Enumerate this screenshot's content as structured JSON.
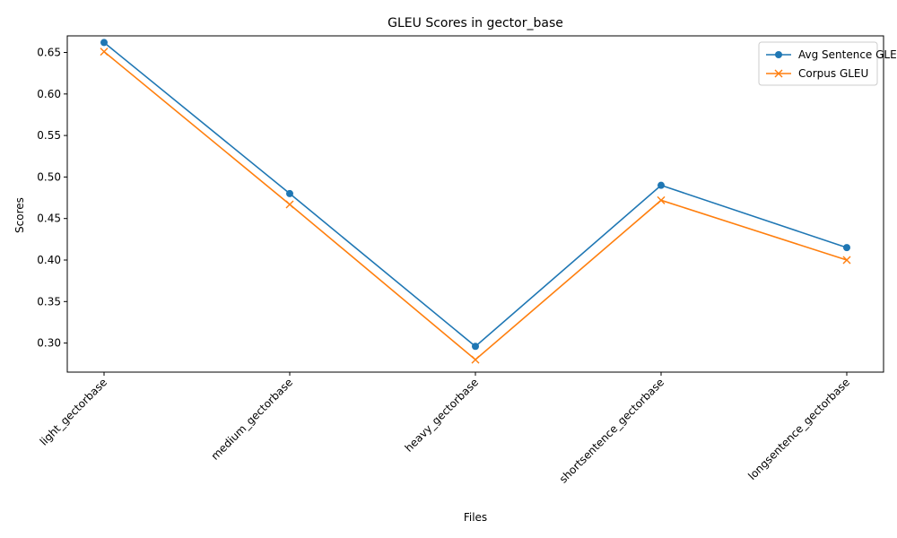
{
  "chart_data": {
    "type": "line",
    "title": "GLEU Scores in gector_base",
    "xlabel": "Files",
    "ylabel": "Scores",
    "categories": [
      "light_gectorbase",
      "medium_gectorbase",
      "heavy_gectorbase",
      "shortsentence_gectorbase",
      "longsentence_gectorbase"
    ],
    "ylim": [
      0.265,
      0.67
    ],
    "yticks": [
      0.3,
      0.35,
      0.4,
      0.45,
      0.5,
      0.55,
      0.6,
      0.65
    ],
    "ytick_labels": [
      "0.30",
      "0.35",
      "0.40",
      "0.45",
      "0.50",
      "0.55",
      "0.60",
      "0.65"
    ],
    "grid": false,
    "legend_position": "top-right",
    "series": [
      {
        "name": "Avg Sentence GLEU",
        "values": [
          0.662,
          0.48,
          0.296,
          0.49,
          0.415
        ],
        "color": "#1f77b4",
        "marker": "circle"
      },
      {
        "name": "Corpus GLEU",
        "values": [
          0.651,
          0.467,
          0.28,
          0.472,
          0.4
        ],
        "color": "#ff7f0e",
        "marker": "x"
      }
    ]
  }
}
